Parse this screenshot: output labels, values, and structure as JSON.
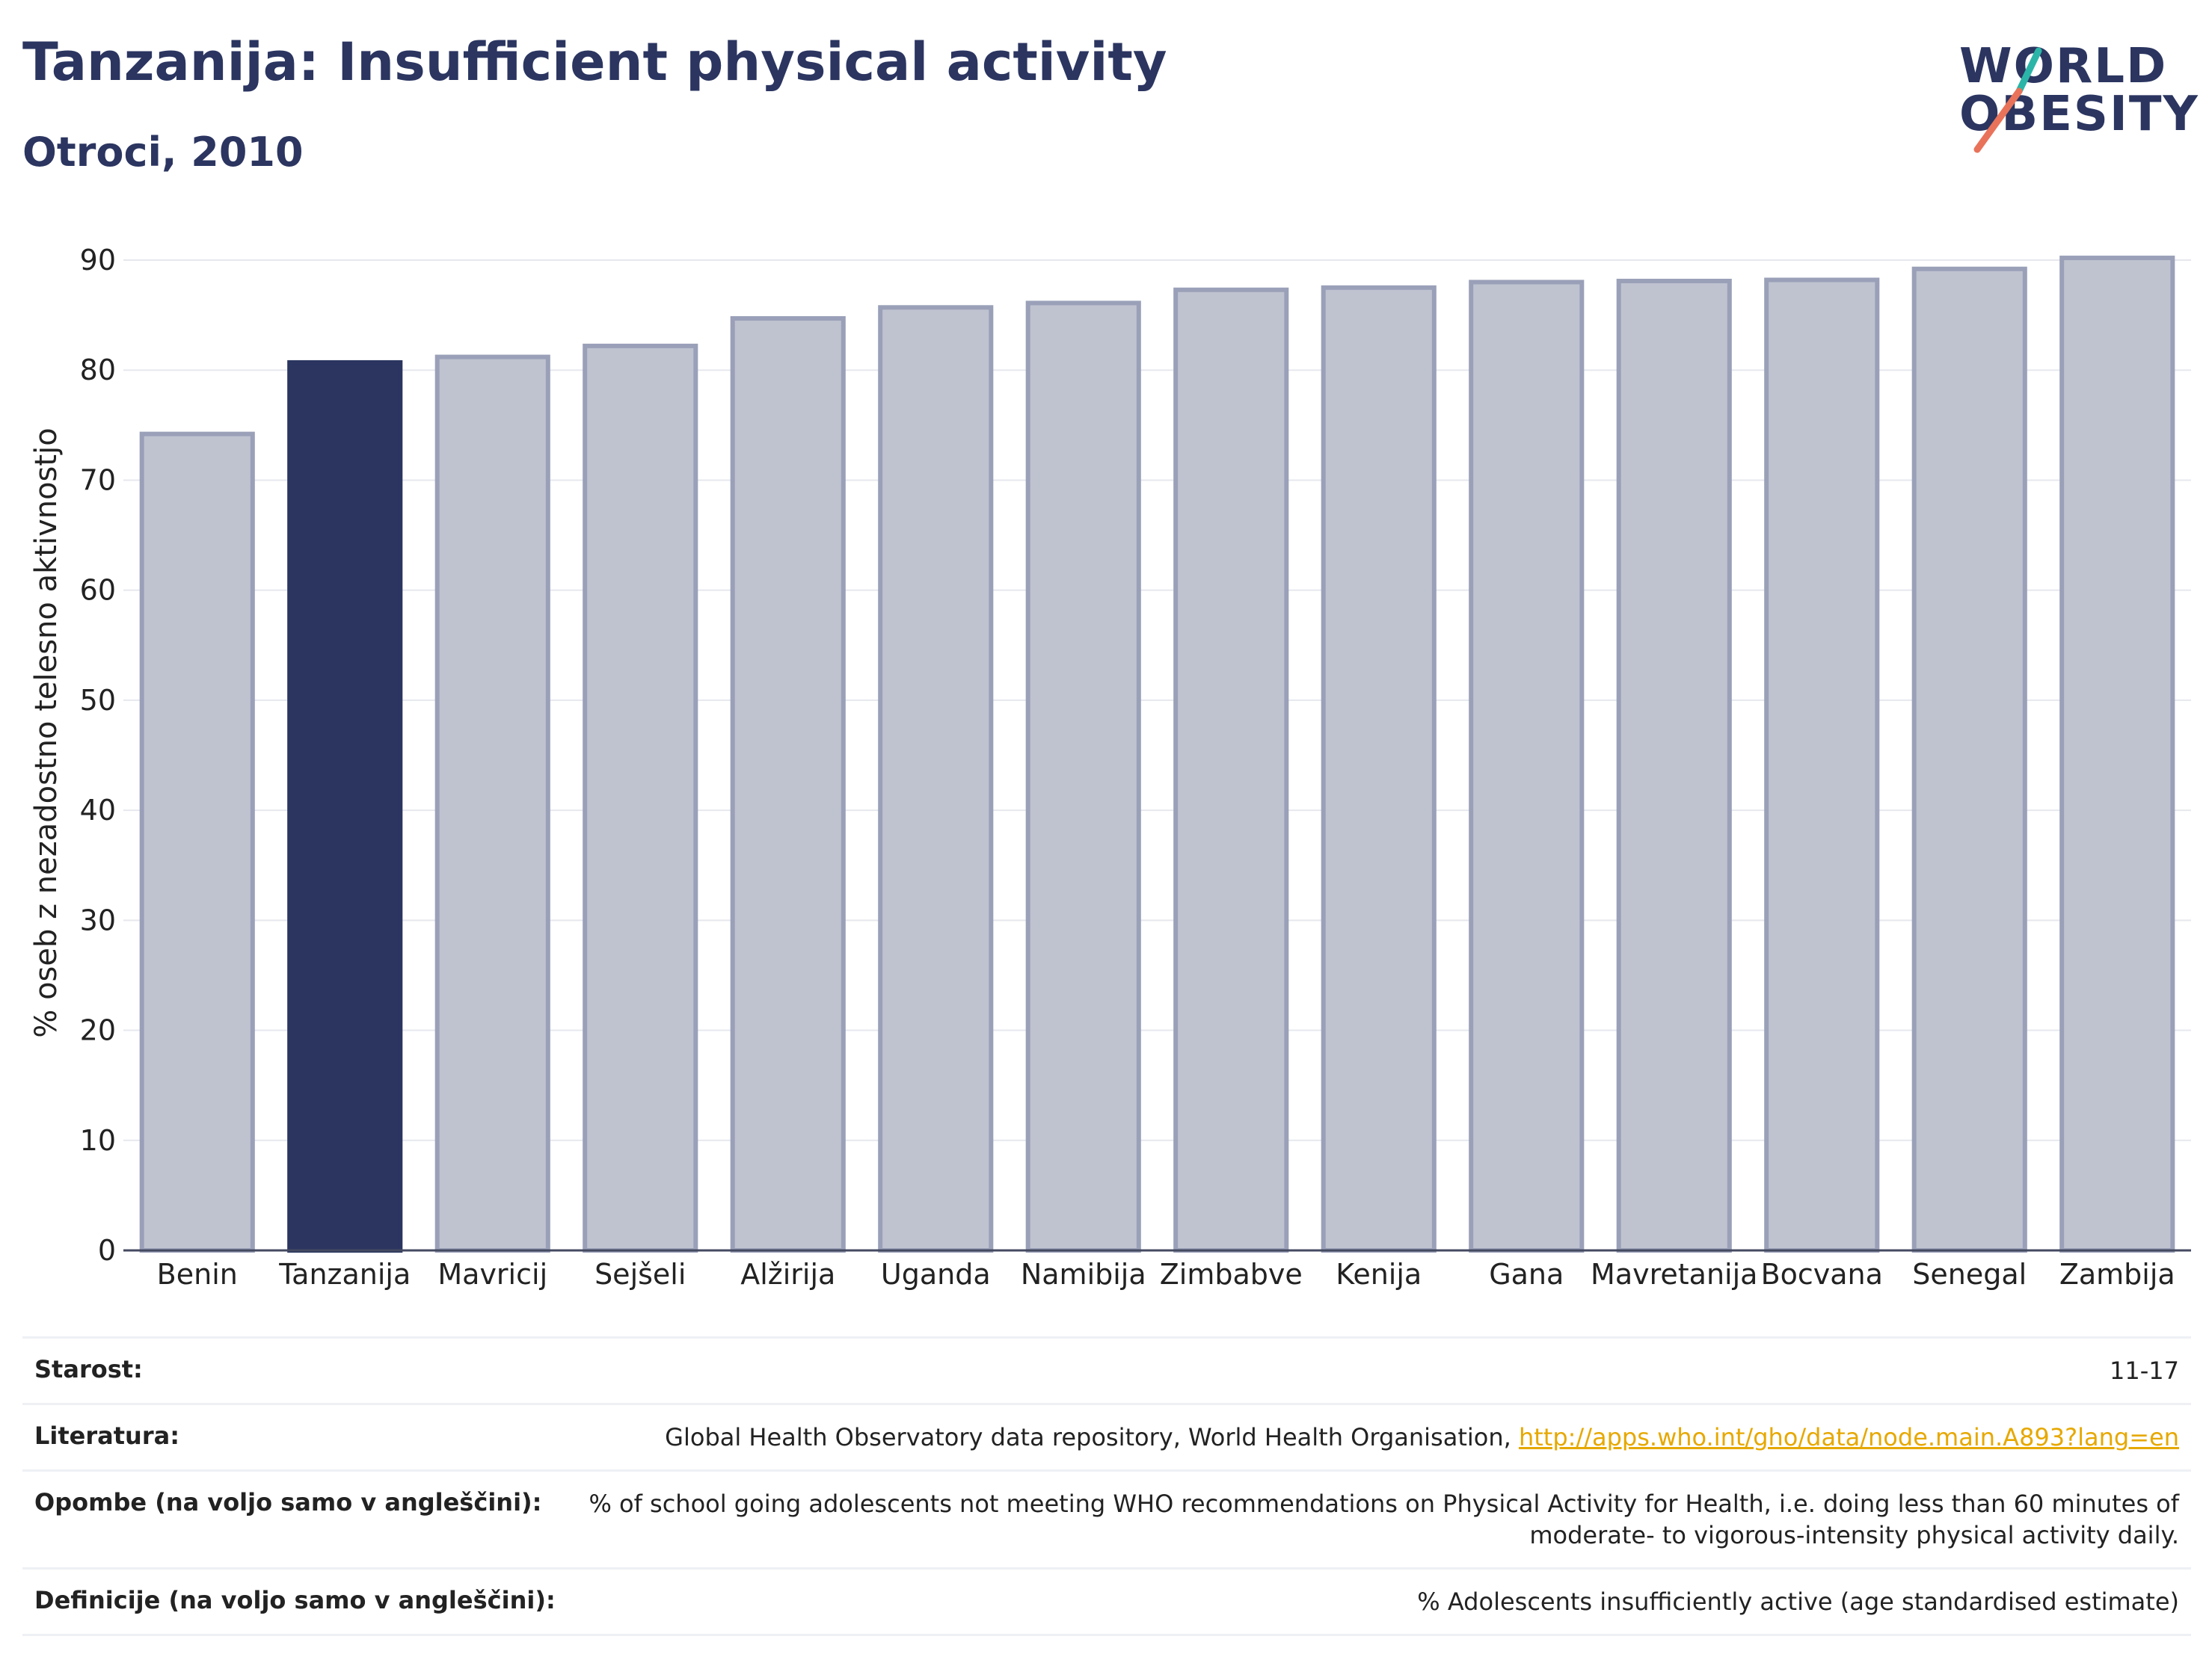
{
  "header": {
    "title": "Tanzanija: Insufficient physical activity",
    "subtitle": "Otroci, 2010"
  },
  "logo": {
    "line1": "WORLD",
    "line2": "OBESITY",
    "accent_colors": [
      "#2bb5a8",
      "#e8735a"
    ]
  },
  "chart_data": {
    "type": "bar",
    "categories": [
      "Benin",
      "Tanzanija",
      "Mavricij",
      "Sejšeli",
      "Alžirija",
      "Uganda",
      "Namibija",
      "Zimbabve",
      "Kenija",
      "Gana",
      "Mavretanija",
      "Bocvana",
      "Senegal",
      "Zambija"
    ],
    "values": [
      74.2,
      80.7,
      81.2,
      82.2,
      84.7,
      85.7,
      86.1,
      87.3,
      87.5,
      88.0,
      88.1,
      88.2,
      89.2,
      90.2
    ],
    "highlight": "Tanzanija",
    "xlabel": "",
    "ylabel": "% oseb z nezadostno telesno aktivnostjo",
    "ylim": [
      0,
      90
    ],
    "yticks": [
      0,
      10,
      20,
      30,
      40,
      50,
      60,
      70,
      80,
      90
    ],
    "grid": true,
    "colors": {
      "highlight": "#2b3560",
      "bar_fill": "#bfc3d0",
      "bar_stroke": "#9aa0b8"
    }
  },
  "info_table": {
    "rows": [
      {
        "label": "Starost:",
        "value": "11-17"
      },
      {
        "label": "Literatura:",
        "value": "Global Health Observatory data repository, World Health Organisation, ",
        "link": "http://apps.who.int/gho/data/node.main.A893?lang=en"
      },
      {
        "label": "Opombe (na voljo samo v angleščini):",
        "value": "% of school going adolescents not meeting WHO recommendations on Physical Activity for Health, i.e. doing less than 60 minutes of moderate- to vigorous-intensity physical activity daily."
      },
      {
        "label": "Definicije (na voljo samo v angleščini):",
        "value": "% Adolescents insufficiently active (age standardised estimate)"
      }
    ]
  }
}
